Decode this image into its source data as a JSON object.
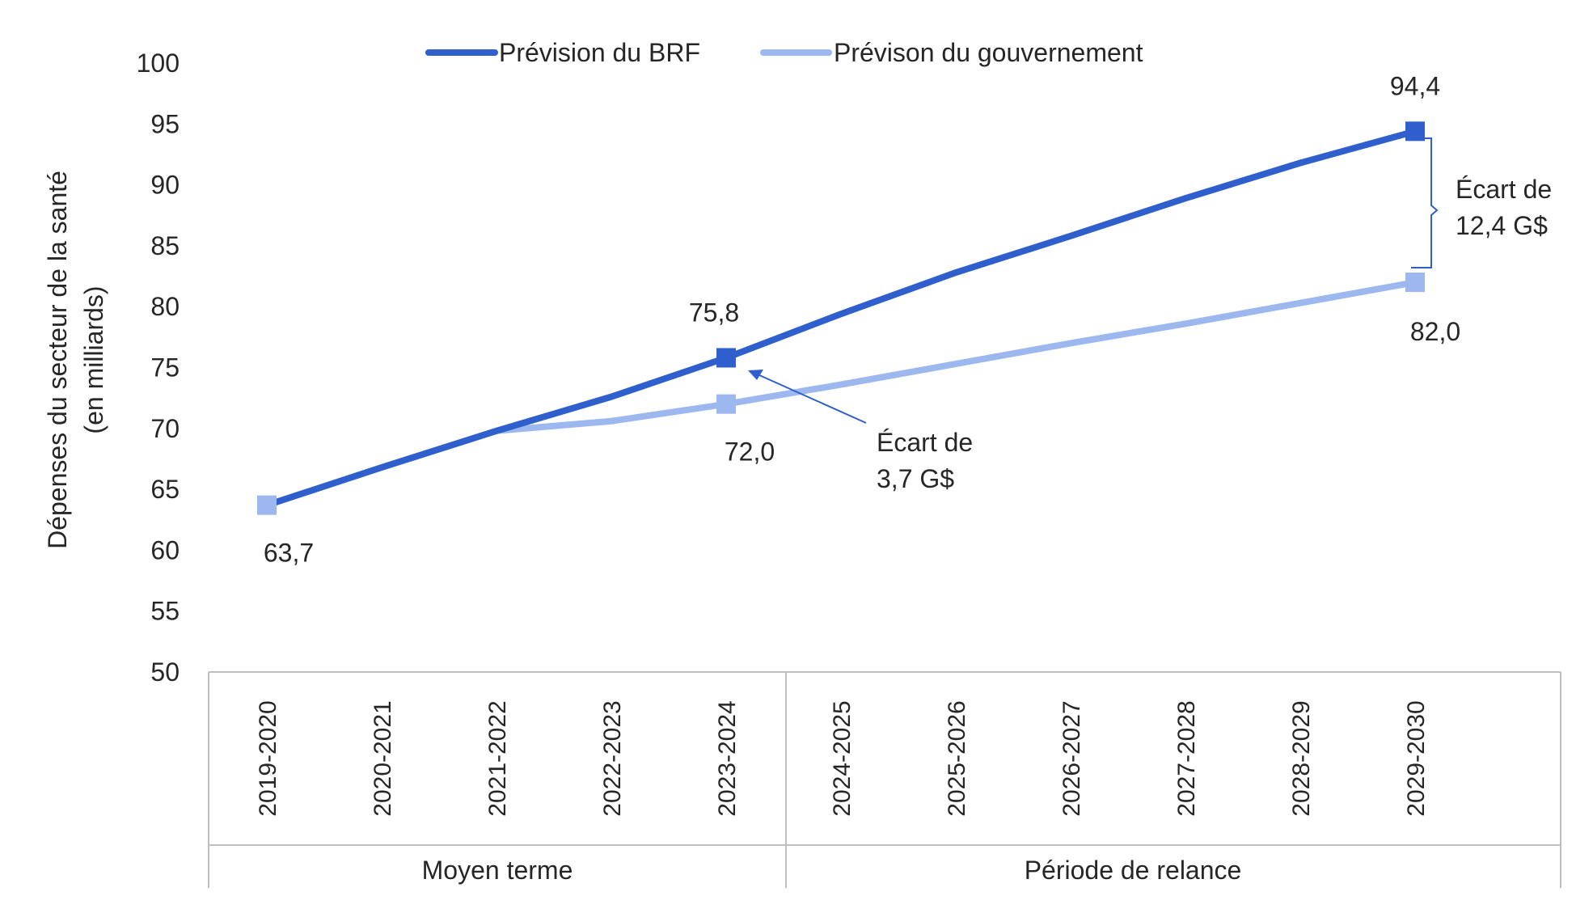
{
  "chart_data": {
    "type": "line",
    "title": "",
    "ylabel_line1": "Dépenses du secteur de la santé",
    "ylabel_line2": "(en milliards)",
    "xlabel": "",
    "ylim": [
      50,
      100
    ],
    "y_ticks": [
      50,
      55,
      60,
      65,
      70,
      75,
      80,
      85,
      90,
      95,
      100
    ],
    "grid": false,
    "legend_position": "top-center",
    "categories": [
      "2019-2020",
      "2020-2021",
      "2021-2022",
      "2022-2023",
      "2023-2024",
      "2024-2025",
      "2025-2026",
      "2026-2027",
      "2027-2028",
      "2028-2029",
      "2029-2030"
    ],
    "groups": [
      {
        "label": "Moyen terme",
        "categories": [
          "2019-2020",
          "2020-2021",
          "2021-2022",
          "2022-2023",
          "2023-2024"
        ]
      },
      {
        "label": "Période de relance",
        "categories": [
          "2024-2025",
          "2025-2026",
          "2026-2027",
          "2027-2028",
          "2028-2029",
          "2029-2030"
        ]
      }
    ],
    "series": [
      {
        "name": "Prévision du BRF",
        "color": "#2f5fcc",
        "values": [
          63.7,
          66.8,
          69.8,
          72.6,
          75.8,
          79.4,
          82.8,
          85.8,
          88.9,
          91.8,
          94.4
        ],
        "markers_at": [
          4,
          10
        ],
        "labels": [
          {
            "index": 4,
            "text": "75,8"
          },
          {
            "index": 10,
            "text": "94,4"
          }
        ]
      },
      {
        "name": "Prévison du gouvernement",
        "color": "#9db8ef",
        "values": [
          63.7,
          66.8,
          69.8,
          70.6,
          72.0,
          73.6,
          75.3,
          77.0,
          78.6,
          80.3,
          82.0
        ],
        "markers_at": [
          0,
          4,
          10
        ],
        "labels": [
          {
            "index": 0,
            "text": "63,7"
          },
          {
            "index": 4,
            "text": "72,0"
          },
          {
            "index": 10,
            "text": "82,0"
          }
        ]
      }
    ],
    "annotations": [
      {
        "line1": "Écart de",
        "line2": "3,7 G$",
        "between": "2023-2024"
      },
      {
        "line1": "Écart de",
        "line2": "12,4 G$",
        "between": "2029-2030"
      }
    ]
  }
}
